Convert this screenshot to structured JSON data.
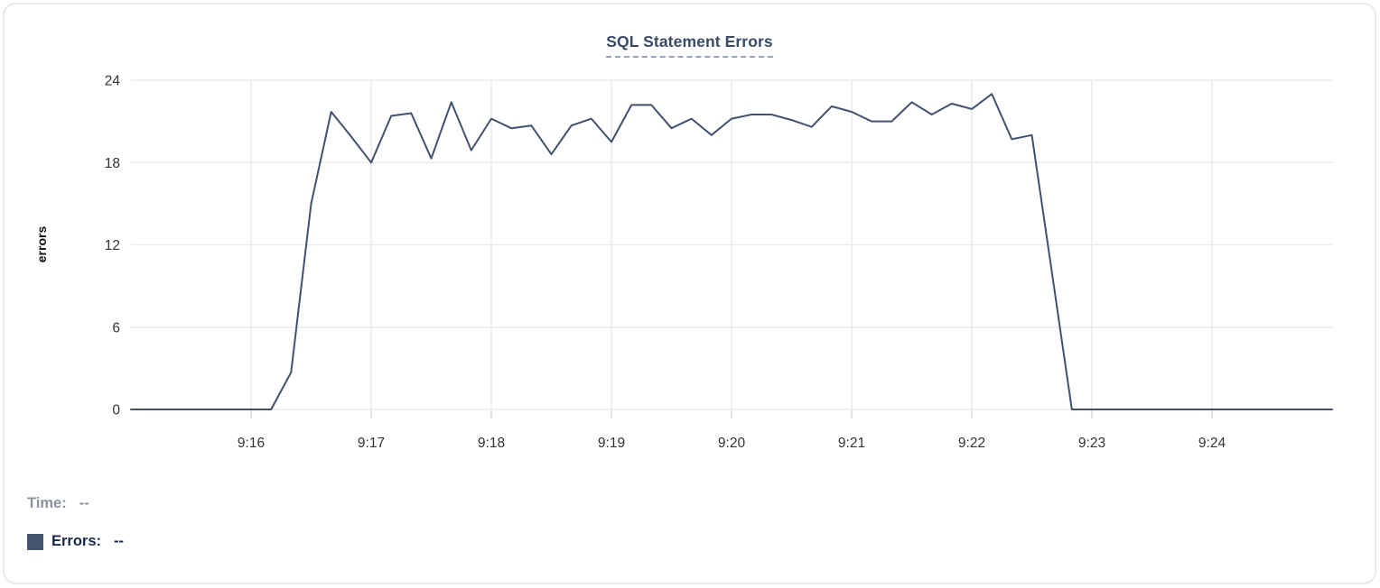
{
  "colors": {
    "line": "#42526e",
    "swatch": "#44546f",
    "grid": "#e9eaec",
    "tick": "#d8dade",
    "axis_text": "#333333",
    "title": "#3a4b68",
    "time_text": "#8b93a1",
    "errors_text": "#17294d"
  },
  "header": {
    "title": "SQL Statement Errors"
  },
  "tooltip_readout": {
    "time_label": "Time:",
    "time_value": "--",
    "errors_label": "Errors:",
    "errors_value": "--"
  },
  "chart_data": {
    "type": "line",
    "title": "SQL Statement Errors",
    "xlabel": "",
    "ylabel": "errors",
    "ylim": [
      0,
      24
    ],
    "y_ticks": [
      0,
      6,
      12,
      18,
      24
    ],
    "x_tick_labels": [
      "9:16",
      "9:17",
      "9:18",
      "9:19",
      "9:20",
      "9:21",
      "9:22",
      "9:23",
      "9:24"
    ],
    "x_range": [
      "9:15:00",
      "9:25:00"
    ],
    "x_interval_seconds": 10,
    "grid": true,
    "legend_position": "bottom-left",
    "x": [
      "9:15:00",
      "9:15:10",
      "9:15:20",
      "9:15:30",
      "9:15:40",
      "9:15:50",
      "9:16:00",
      "9:16:10",
      "9:16:20",
      "9:16:30",
      "9:16:40",
      "9:16:50",
      "9:17:00",
      "9:17:10",
      "9:17:20",
      "9:17:30",
      "9:17:40",
      "9:17:50",
      "9:18:00",
      "9:18:10",
      "9:18:20",
      "9:18:30",
      "9:18:40",
      "9:18:50",
      "9:19:00",
      "9:19:10",
      "9:19:20",
      "9:19:30",
      "9:19:40",
      "9:19:50",
      "9:20:00",
      "9:20:10",
      "9:20:20",
      "9:20:30",
      "9:20:40",
      "9:20:50",
      "9:21:00",
      "9:21:10",
      "9:21:20",
      "9:21:30",
      "9:21:40",
      "9:21:50",
      "9:22:00",
      "9:22:10",
      "9:22:20",
      "9:22:30",
      "9:22:40",
      "9:22:50",
      "9:23:00",
      "9:23:10",
      "9:23:20",
      "9:23:30",
      "9:23:40",
      "9:23:50",
      "9:24:00",
      "9:24:10",
      "9:24:20",
      "9:24:30",
      "9:24:40",
      "9:24:50",
      "9:25:00"
    ],
    "series": [
      {
        "name": "Errors",
        "values": [
          0,
          0,
          0,
          0,
          0,
          0,
          0,
          0,
          2.7,
          15,
          21.7,
          19.9,
          18,
          21.4,
          21.6,
          18.3,
          22.4,
          18.9,
          21.2,
          20.5,
          20.7,
          18.6,
          20.7,
          21.2,
          19.5,
          22.2,
          22.2,
          20.5,
          21.2,
          20,
          21.2,
          21.5,
          21.5,
          21.1,
          20.6,
          22.1,
          21.7,
          21,
          21,
          22.4,
          21.5,
          22.3,
          21.9,
          23,
          19.7,
          20,
          10,
          0,
          0,
          0,
          0,
          0,
          0,
          0,
          0,
          0,
          0,
          0,
          0,
          0,
          0
        ]
      }
    ]
  }
}
